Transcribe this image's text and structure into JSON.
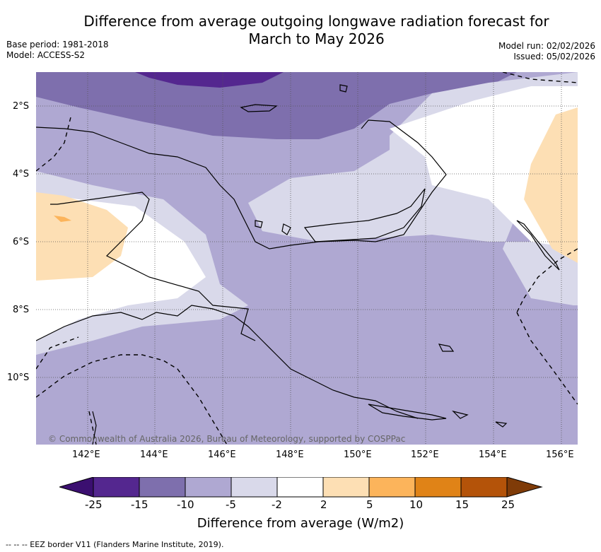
{
  "title": {
    "line1": "Difference from average outgoing longwave radiation forecast for",
    "line2": "March to May 2026"
  },
  "meta": {
    "base_period": "Base period: 1981-2018",
    "model": "Model: ACCESS-S2",
    "model_run": "Model run: 02/02/2026",
    "issued": "Issued: 05/02/2026"
  },
  "map": {
    "copyright": "© Commonwealth of Australia 2026, Bureau of Meteorology, supported by COSPPac",
    "lat_labels": [
      "2°S",
      "4°S",
      "6°S",
      "8°S",
      "10°S"
    ],
    "lon_labels": [
      "142°E",
      "144°E",
      "146°E",
      "148°E",
      "150°E",
      "152°E",
      "154°E",
      "156°E"
    ]
  },
  "colorbar": {
    "title": "Difference from average (W/m2)",
    "ticks": [
      "-25",
      "-15",
      "-10",
      "-5",
      "-2",
      "2",
      "5",
      "10",
      "15",
      "25"
    ],
    "colors": [
      "#3b0f70",
      "#54278f",
      "#7e6fad",
      "#afa8d2",
      "#d9d9ea",
      "#ffffff",
      "#fddfb4",
      "#fcb45b",
      "#e08317",
      "#b45309",
      "#7f3b08"
    ]
  },
  "legend_note": "-- -- -- EEZ border V11 (Flanders Marine Institute, 2019)."
}
